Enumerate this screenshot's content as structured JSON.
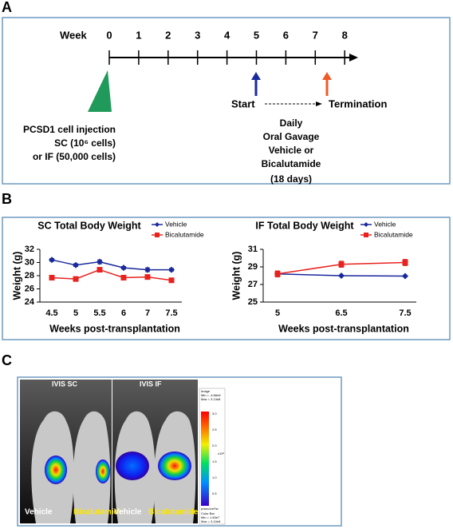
{
  "panel_a": {
    "label": "A",
    "week_label": "Week",
    "weeks": [
      0,
      1,
      2,
      3,
      4,
      5,
      6,
      7,
      8
    ],
    "start": "Start",
    "termination": "Termination",
    "injection_lines": [
      "PCSD1 cell injection",
      "SC (10⁶ cells)",
      "or IF (50,000 cells)"
    ],
    "treatment_lines": [
      "Daily",
      "Oral Gavage",
      "Vehicle or",
      "Bicalutamide",
      "(18 days)"
    ]
  },
  "panel_b": {
    "label": "B"
  },
  "chart_data": [
    {
      "type": "line",
      "title": "SC Total Body Weight",
      "x_label": "Weeks post-transplantation",
      "y_label": "Weight (g)",
      "categories": [
        "4.5",
        "5",
        "5.5",
        "6",
        "7",
        "7.5"
      ],
      "ylim": [
        24,
        32
      ],
      "yticks": [
        24,
        26,
        28,
        30,
        32
      ],
      "series": [
        {
          "name": "Vehicle",
          "color": "#1a2a9c",
          "marker": "diamond",
          "values": [
            30.4,
            29.6,
            30.1,
            29.2,
            28.9,
            28.9
          ],
          "errors": [
            0.2,
            0.2,
            0.3,
            0.2,
            0.3,
            0.2
          ]
        },
        {
          "name": "Bicalutamide",
          "color": "#e8231f",
          "marker": "square",
          "values": [
            27.7,
            27.5,
            28.9,
            27.7,
            27.8,
            27.3
          ],
          "errors": [
            0.2,
            0.2,
            0.2,
            0.2,
            0.2,
            0.2
          ]
        }
      ]
    },
    {
      "type": "line",
      "title": "IF Total Body Weight",
      "x_label": "Weeks post-transplantation",
      "y_label": "Weight (g)",
      "categories": [
        "5",
        "6.5",
        "7.5"
      ],
      "ylim": [
        25,
        31
      ],
      "yticks": [
        25,
        27,
        29,
        31
      ],
      "series": [
        {
          "name": "Vehicle",
          "color": "#1a2a9c",
          "marker": "diamond",
          "values": [
            28.2,
            28.0,
            27.95
          ],
          "errors": [
            0.1,
            0.05,
            0.05
          ]
        },
        {
          "name": "Bicalutamide",
          "color": "#e8231f",
          "marker": "square",
          "values": [
            28.2,
            29.3,
            29.5
          ],
          "errors": [
            0.35,
            0.35,
            0.35
          ]
        }
      ]
    }
  ],
  "panel_c": {
    "label": "C",
    "titles": [
      "IVIS SC",
      "IVIS IF"
    ],
    "mouse_labels": [
      "Vehicle",
      "Bicalutamide",
      "Vehicle",
      "Bicalutamide"
    ],
    "scale_header": [
      "Image",
      "Min = -4.66e6",
      "Max = 3.13e8"
    ],
    "scale_ticks": [
      "3.0",
      "2.5",
      "2.0",
      "1.5",
      "1.0",
      "0.5"
    ],
    "scale_unit": "x10⁸",
    "scale_units_text": "p/sec/cm²/sr",
    "scale_footer": [
      "Color Bar",
      "Min = 1.50e7",
      "Max = 3.10e8"
    ]
  }
}
